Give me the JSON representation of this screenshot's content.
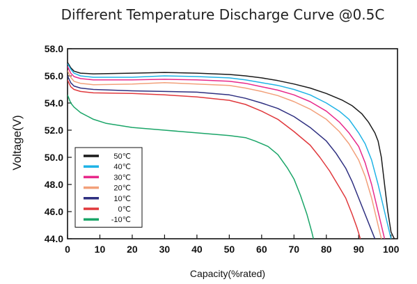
{
  "chart_data": {
    "type": "line",
    "title": "Different Temperature Discharge Curve @0.5C",
    "xlabel": "Capacity(%rated)",
    "ylabel": "Voltage(V)",
    "xlim": [
      0,
      102
    ],
    "ylim": [
      44,
      58
    ],
    "x_ticks": [
      "0",
      "10",
      "20",
      "30",
      "40",
      "50",
      "60",
      "70",
      "80",
      "90",
      "100"
    ],
    "y_ticks": [
      "44.0",
      "46.0",
      "48.0",
      "50.0",
      "52.0",
      "54.0",
      "56.0",
      "58.0"
    ],
    "grid": false,
    "legend_position": "bottom-left",
    "series": [
      {
        "name": "50℃",
        "color": "#1a1a1a",
        "points": [
          [
            0,
            57.0
          ],
          [
            1,
            56.6
          ],
          [
            2,
            56.35
          ],
          [
            4,
            56.2
          ],
          [
            8,
            56.15
          ],
          [
            20,
            56.2
          ],
          [
            30,
            56.25
          ],
          [
            40,
            56.2
          ],
          [
            50,
            56.1
          ],
          [
            55,
            56.0
          ],
          [
            60,
            55.85
          ],
          [
            65,
            55.65
          ],
          [
            70,
            55.4
          ],
          [
            75,
            55.1
          ],
          [
            80,
            54.7
          ],
          [
            85,
            54.2
          ],
          [
            88,
            53.8
          ],
          [
            91,
            53.2
          ],
          [
            93,
            52.6
          ],
          [
            95,
            51.8
          ],
          [
            96,
            51.2
          ],
          [
            97,
            50.0
          ],
          [
            98,
            48.0
          ],
          [
            99,
            46.0
          ],
          [
            100,
            44.5
          ],
          [
            101,
            44.0
          ]
        ]
      },
      {
        "name": "40℃",
        "color": "#1fb3e6",
        "points": [
          [
            0,
            56.9
          ],
          [
            1,
            56.5
          ],
          [
            2,
            56.2
          ],
          [
            4,
            56.0
          ],
          [
            8,
            55.9
          ],
          [
            20,
            55.9
          ],
          [
            30,
            56.0
          ],
          [
            40,
            55.95
          ],
          [
            50,
            55.85
          ],
          [
            55,
            55.7
          ],
          [
            60,
            55.5
          ],
          [
            65,
            55.3
          ],
          [
            70,
            55.0
          ],
          [
            75,
            54.6
          ],
          [
            80,
            54.0
          ],
          [
            84,
            53.4
          ],
          [
            87,
            52.8
          ],
          [
            90,
            51.8
          ],
          [
            92,
            51.0
          ],
          [
            94,
            49.8
          ],
          [
            96,
            48.0
          ],
          [
            98,
            46.0
          ],
          [
            99.5,
            44.5
          ],
          [
            100,
            44.0
          ]
        ]
      },
      {
        "name": "30℃",
        "color": "#e8288a",
        "points": [
          [
            0,
            56.7
          ],
          [
            1,
            56.2
          ],
          [
            2,
            55.95
          ],
          [
            4,
            55.8
          ],
          [
            8,
            55.7
          ],
          [
            20,
            55.7
          ],
          [
            30,
            55.75
          ],
          [
            40,
            55.7
          ],
          [
            50,
            55.6
          ],
          [
            55,
            55.45
          ],
          [
            60,
            55.2
          ],
          [
            65,
            54.95
          ],
          [
            70,
            54.6
          ],
          [
            75,
            54.1
          ],
          [
            80,
            53.4
          ],
          [
            84,
            52.6
          ],
          [
            87,
            51.8
          ],
          [
            90,
            50.8
          ],
          [
            92,
            49.6
          ],
          [
            94,
            48.0
          ],
          [
            96,
            46.0
          ],
          [
            97.5,
            44.5
          ],
          [
            98,
            44.0
          ]
        ]
      },
      {
        "name": "20℃",
        "color": "#f2a07a",
        "points": [
          [
            0,
            56.4
          ],
          [
            1,
            55.9
          ],
          [
            2,
            55.6
          ],
          [
            4,
            55.45
          ],
          [
            8,
            55.35
          ],
          [
            20,
            55.4
          ],
          [
            30,
            55.5
          ],
          [
            40,
            55.4
          ],
          [
            50,
            55.3
          ],
          [
            55,
            55.1
          ],
          [
            60,
            54.85
          ],
          [
            65,
            54.55
          ],
          [
            70,
            54.1
          ],
          [
            75,
            53.55
          ],
          [
            80,
            52.8
          ],
          [
            84,
            51.9
          ],
          [
            87,
            51.0
          ],
          [
            90,
            49.8
          ],
          [
            92,
            48.6
          ],
          [
            94,
            47.0
          ],
          [
            96,
            45.0
          ],
          [
            97,
            44.0
          ]
        ]
      },
      {
        "name": "10℃",
        "color": "#2e2f80",
        "points": [
          [
            0,
            56.0
          ],
          [
            1,
            55.5
          ],
          [
            2,
            55.25
          ],
          [
            4,
            55.1
          ],
          [
            8,
            55.0
          ],
          [
            20,
            54.9
          ],
          [
            30,
            54.85
          ],
          [
            40,
            54.8
          ],
          [
            50,
            54.6
          ],
          [
            55,
            54.35
          ],
          [
            60,
            54.0
          ],
          [
            65,
            53.6
          ],
          [
            70,
            53.0
          ],
          [
            75,
            52.2
          ],
          [
            80,
            51.2
          ],
          [
            83,
            50.3
          ],
          [
            86,
            49.2
          ],
          [
            88,
            48.2
          ],
          [
            90,
            47.0
          ],
          [
            92,
            45.8
          ],
          [
            94,
            44.6
          ],
          [
            95,
            44.0
          ]
        ]
      },
      {
        "name": "0℃",
        "color": "#e0383c",
        "points": [
          [
            0,
            55.7
          ],
          [
            1,
            55.2
          ],
          [
            2,
            55.0
          ],
          [
            4,
            54.85
          ],
          [
            8,
            54.75
          ],
          [
            20,
            54.7
          ],
          [
            30,
            54.6
          ],
          [
            40,
            54.45
          ],
          [
            50,
            54.2
          ],
          [
            55,
            53.9
          ],
          [
            60,
            53.4
          ],
          [
            65,
            52.8
          ],
          [
            70,
            51.9
          ],
          [
            75,
            50.9
          ],
          [
            78,
            50.0
          ],
          [
            81,
            49.0
          ],
          [
            84,
            47.8
          ],
          [
            86,
            47.0
          ],
          [
            88,
            45.8
          ],
          [
            89.5,
            44.8
          ],
          [
            90.5,
            44.0
          ]
        ]
      },
      {
        "name": "-10℃",
        "color": "#1aa568",
        "points": [
          [
            0,
            54.6
          ],
          [
            1,
            54.0
          ],
          [
            2,
            53.7
          ],
          [
            4,
            53.3
          ],
          [
            8,
            52.8
          ],
          [
            12,
            52.5
          ],
          [
            20,
            52.2
          ],
          [
            30,
            52.0
          ],
          [
            40,
            51.8
          ],
          [
            50,
            51.6
          ],
          [
            55,
            51.45
          ],
          [
            58,
            51.2
          ],
          [
            62,
            50.8
          ],
          [
            65,
            50.2
          ],
          [
            68,
            49.2
          ],
          [
            70,
            48.4
          ],
          [
            72,
            47.2
          ],
          [
            74,
            45.8
          ],
          [
            75.5,
            44.5
          ],
          [
            76,
            44.0
          ]
        ]
      }
    ]
  }
}
